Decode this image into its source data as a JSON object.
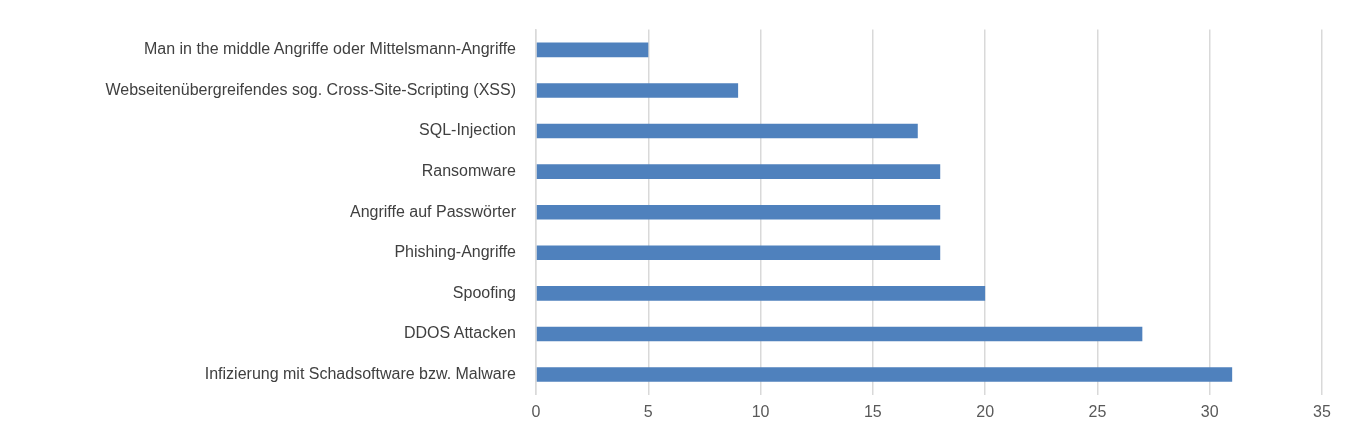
{
  "chart_data": {
    "type": "bar",
    "orientation": "horizontal",
    "categories": [
      "Man in the middle Angriffe oder Mittelsmann-Angriffe",
      "Webseitenübergreifendes sog. Cross-Site-Scripting (XSS)",
      "SQL-Injection",
      "Ransomware",
      "Angriffe auf Passwörter",
      "Phishing-Angriffe",
      "Spoofing",
      "DDOS Attacken",
      "Infizierung mit Schadsoftware bzw. Malware"
    ],
    "values": [
      5,
      9,
      17,
      18,
      18,
      18,
      20,
      27,
      31
    ],
    "color": "#4f81bd",
    "xlim": [
      0,
      35
    ],
    "xticks": [
      0,
      5,
      10,
      15,
      20,
      25,
      30,
      35
    ],
    "grid": "x",
    "legend": false
  }
}
